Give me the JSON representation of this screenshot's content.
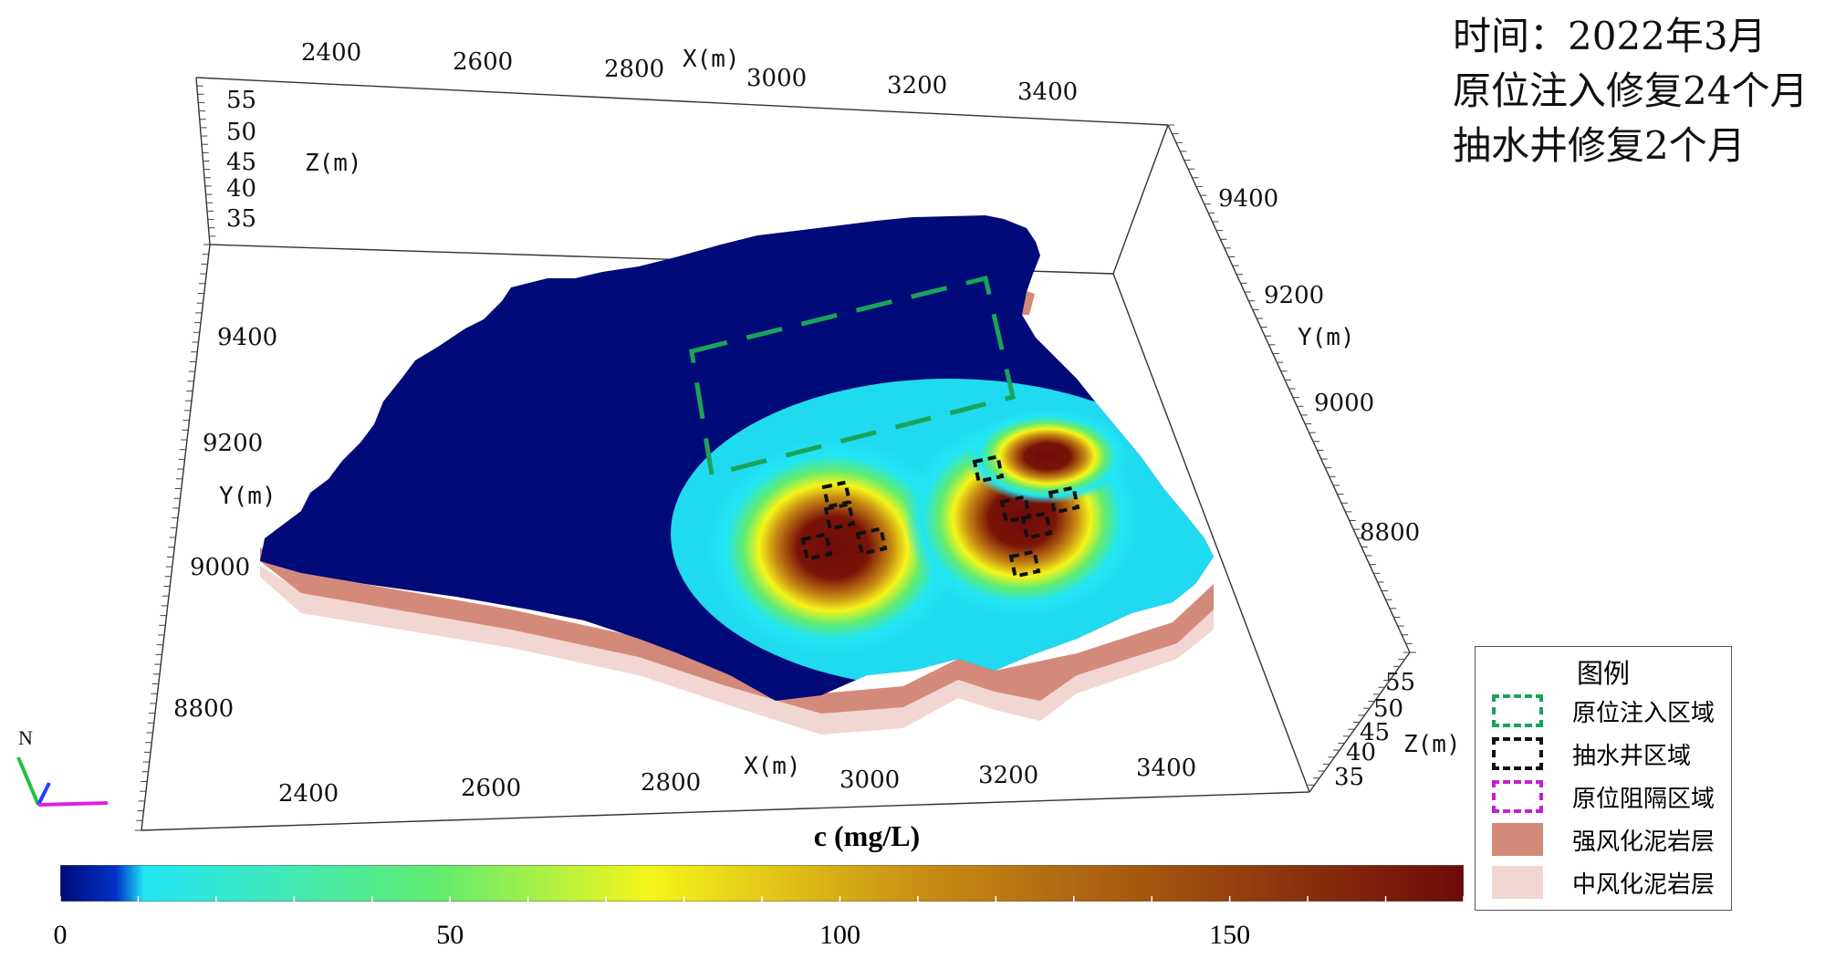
{
  "info": {
    "time": "时间：2022年3月",
    "line2": "原位注入修复24个月",
    "line3": "抽水井修复2个月"
  },
  "axes": {
    "x_label": "X(m)",
    "y_label": "Y(m)",
    "z_label": "Z(m)",
    "x_ticks": [
      "2400",
      "2600",
      "2800",
      "3000",
      "3200",
      "3400"
    ],
    "y_ticks": [
      "8800",
      "9000",
      "9200",
      "9400"
    ],
    "z_ticks": [
      "35",
      "40",
      "45",
      "50",
      "55"
    ]
  },
  "legend": {
    "title": "图例",
    "items": [
      {
        "label": "原位注入区域",
        "style": "dashed",
        "color": "#1aa35a"
      },
      {
        "label": "抽水井区域",
        "style": "dashed",
        "color": "#111111"
      },
      {
        "label": "原位阻隔区域",
        "style": "dashed",
        "color": "#c020d0"
      },
      {
        "label": "强风化泥岩层",
        "style": "fill",
        "color": "#d48a7a"
      },
      {
        "label": "中风化泥岩层",
        "style": "fill",
        "color": "#f2d6d2"
      }
    ]
  },
  "compass": {
    "label": "N"
  },
  "chart_data": {
    "type": "heatmap",
    "title": "",
    "colorbar_title": "c (mg/L)",
    "colorbar_ticks": [
      "0",
      "50",
      "100",
      "150"
    ],
    "colorbar_range": [
      0,
      180
    ],
    "colormap": [
      "#000a78",
      "#0033c8",
      "#22e6f5",
      "#62ec6f",
      "#f5f51a",
      "#c88a14",
      "#6e0a0a"
    ],
    "hotspots": [
      {
        "name": "west plume",
        "x": 2990,
        "y": 9020,
        "peak_c": 180
      },
      {
        "name": "east plume",
        "x": 3240,
        "y": 9080,
        "peak_c": 180
      },
      {
        "name": "north-east lobe",
        "x": 3290,
        "y": 9230,
        "peak_c": 180
      }
    ]
  }
}
